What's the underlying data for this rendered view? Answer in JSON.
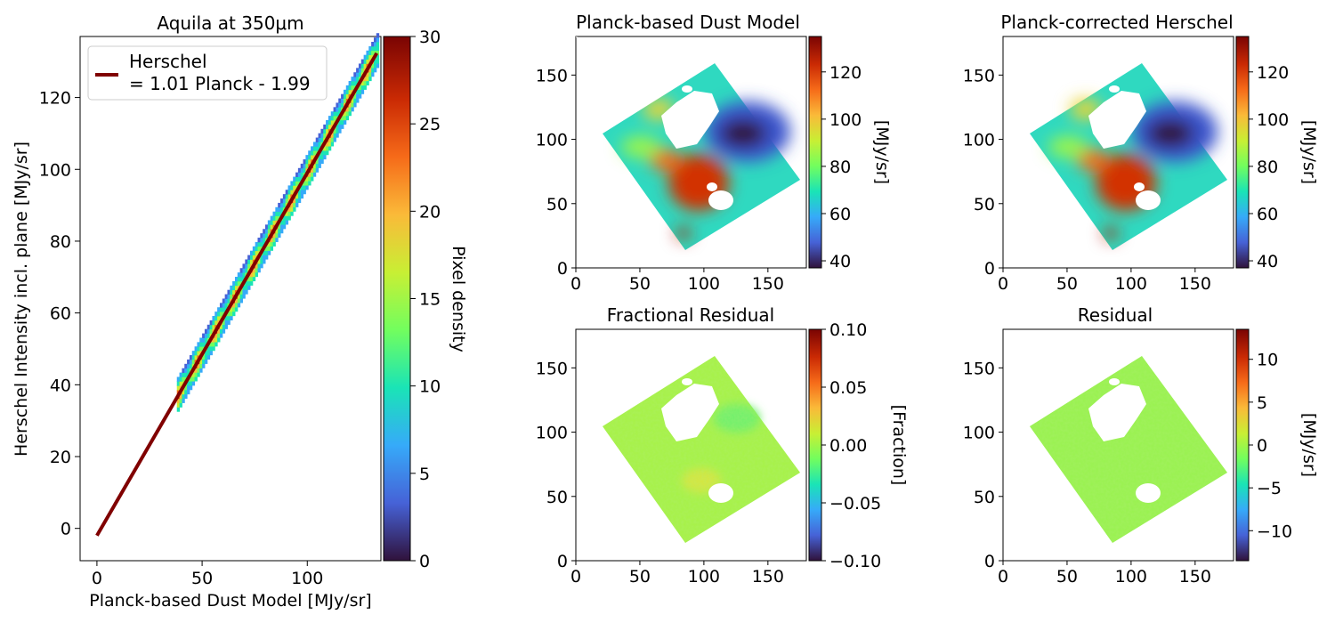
{
  "chart_data": [
    {
      "type": "heatmap",
      "title": "Aquila at 350μm",
      "xlabel": "Planck-based Dust Model [MJy/sr]",
      "ylabel": "Herschel Intensity incl. plane [MJy/sr]",
      "xlim": [
        -8,
        135
      ],
      "ylim": [
        -9,
        137
      ],
      "xticks": [
        "0",
        "50",
        "100"
      ],
      "yticks": [
        "0",
        "20",
        "40",
        "60",
        "80",
        "100",
        "120"
      ],
      "fit": {
        "slope": 1.01,
        "intercept": -1.99,
        "x_range": [
          0,
          133
        ]
      },
      "density_band": {
        "x_range": [
          38,
          133
        ]
      },
      "legend": {
        "location": "top-left",
        "entries": [
          "Herschel",
          "= 1.01 Planck - 1.99"
        ]
      },
      "colorbar": {
        "label": "Pixel density",
        "range": [
          0,
          30
        ],
        "ticks": [
          "0",
          "5",
          "10",
          "15",
          "20",
          "25",
          "30"
        ]
      }
    },
    {
      "type": "heatmap",
      "title": "Planck-based Dust Model",
      "xlim": [
        0,
        180
      ],
      "ylim": [
        0,
        180
      ],
      "xticks": [
        "0",
        "50",
        "100",
        "150"
      ],
      "yticks": [
        "0",
        "50",
        "100",
        "150"
      ],
      "colorbar": {
        "label": "[MJy/sr]",
        "range": [
          37,
          135
        ],
        "ticks": [
          "40",
          "60",
          "80",
          "100",
          "120"
        ]
      }
    },
    {
      "type": "heatmap",
      "title": "Planck-corrected Herschel",
      "xlim": [
        0,
        180
      ],
      "ylim": [
        0,
        180
      ],
      "xticks": [
        "0",
        "50",
        "100",
        "150"
      ],
      "yticks": [
        "0",
        "50",
        "100",
        "150"
      ],
      "colorbar": {
        "label": "[MJy/sr]",
        "range": [
          37,
          135
        ],
        "ticks": [
          "40",
          "60",
          "80",
          "100",
          "120"
        ]
      }
    },
    {
      "type": "heatmap",
      "title": "Fractional Residual",
      "xlim": [
        0,
        180
      ],
      "ylim": [
        0,
        180
      ],
      "xticks": [
        "0",
        "50",
        "100",
        "150"
      ],
      "yticks": [
        "0",
        "50",
        "100",
        "150"
      ],
      "colorbar": {
        "label": "[Fraction]",
        "range": [
          -0.1,
          0.1
        ],
        "ticks": [
          "0.10",
          "0.05",
          "0.00",
          "−0.05",
          "−0.10"
        ]
      }
    },
    {
      "type": "heatmap",
      "title": "Residual",
      "xlim": [
        0,
        180
      ],
      "ylim": [
        0,
        180
      ],
      "xticks": [
        "0",
        "50",
        "100",
        "150"
      ],
      "yticks": [
        "0",
        "50",
        "100",
        "150"
      ],
      "colorbar": {
        "label": "[MJy/sr]",
        "range": [
          -13.5,
          13.5
        ],
        "ticks": [
          "10",
          "5",
          "0",
          "−5",
          "−10"
        ]
      }
    }
  ],
  "colors": {
    "fit_line": "#800000",
    "turbo": [
      "#30123b",
      "#4662d7",
      "#36aaf9",
      "#1ae4b6",
      "#72fe5e",
      "#c8ef34",
      "#faba39",
      "#f66b19",
      "#ca2a04",
      "#7a0403"
    ]
  }
}
